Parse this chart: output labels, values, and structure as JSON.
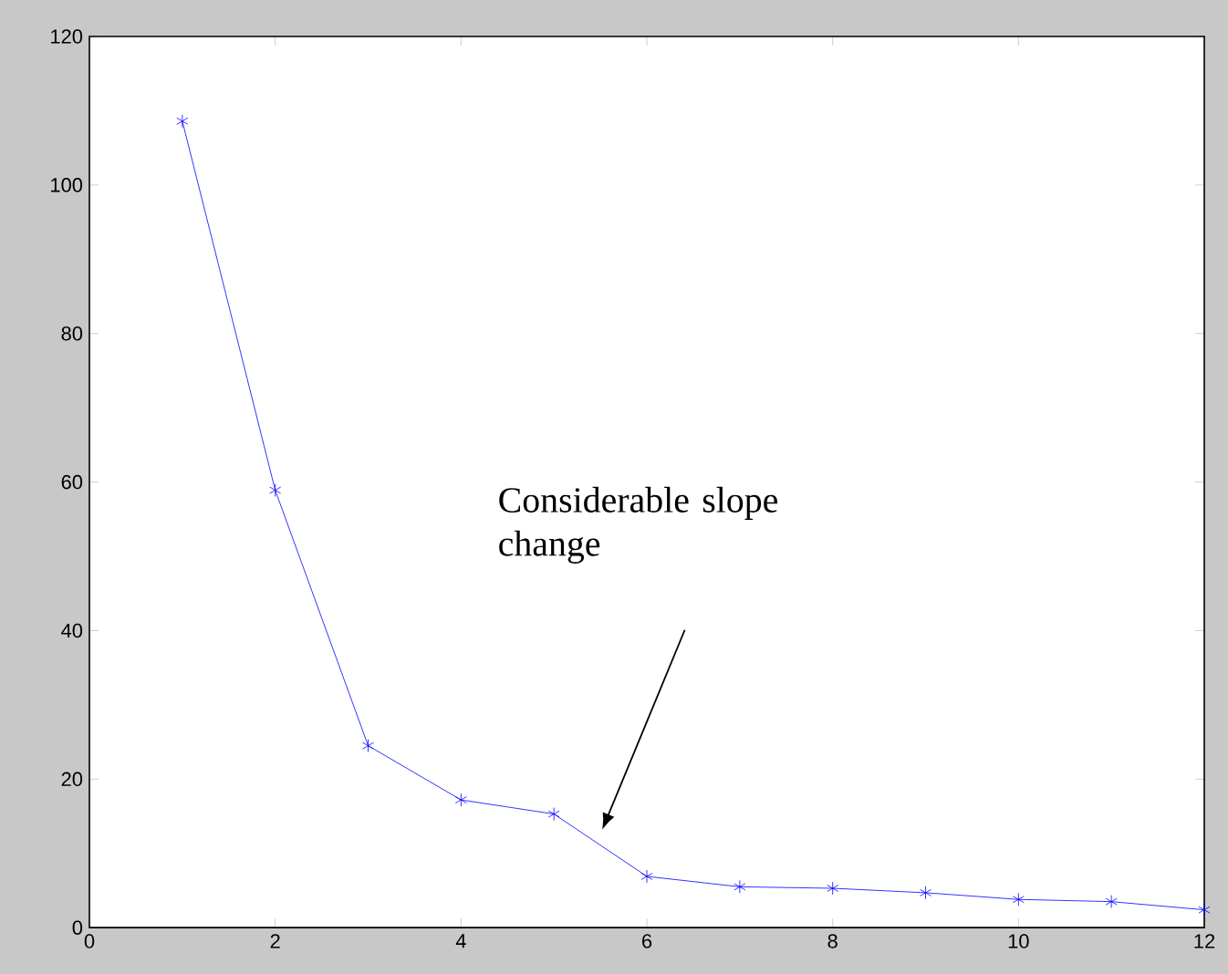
{
  "chart_data": {
    "type": "line",
    "x": [
      1,
      2,
      3,
      4,
      5,
      6,
      7,
      8,
      9,
      10,
      11,
      12
    ],
    "values": [
      108.6,
      58.9,
      24.5,
      17.2,
      15.3,
      6.9,
      5.5,
      5.3,
      4.7,
      3.8,
      3.5,
      2.4
    ],
    "color": "#0000ff",
    "marker": "cross",
    "line_style": "solid",
    "xlim": [
      0,
      12
    ],
    "xticks": [
      0,
      2,
      4,
      6,
      8,
      10,
      12
    ],
    "ylim": [
      0,
      120
    ],
    "yticks": [
      0,
      20,
      40,
      60,
      80,
      100,
      120
    ],
    "grid": false,
    "annotations": [
      "Considerable slope change"
    ]
  }
}
